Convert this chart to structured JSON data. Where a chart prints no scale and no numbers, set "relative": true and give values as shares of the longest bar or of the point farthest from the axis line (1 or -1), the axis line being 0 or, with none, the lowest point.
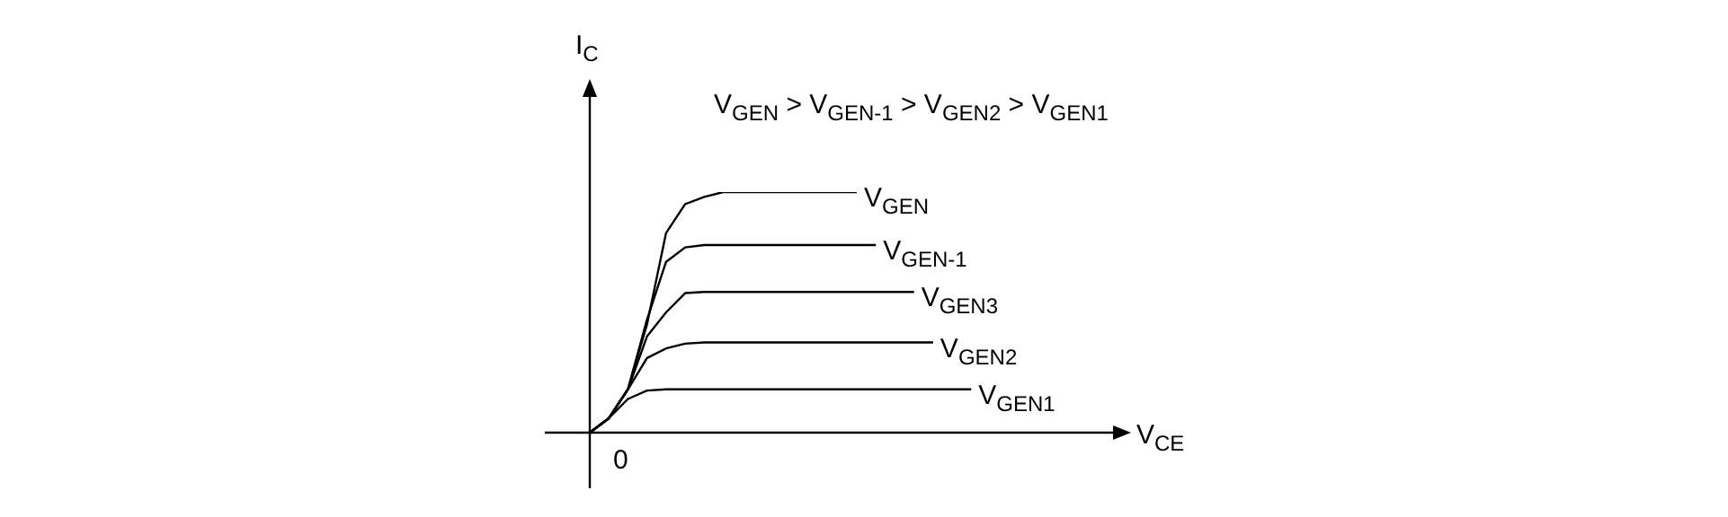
{
  "chart_data": {
    "type": "line",
    "relative": true,
    "xlabel": "V$_{CE}$",
    "ylabel": "I$_{C}$",
    "annotations": [
      "V$_{GEN}$ > V$_{GEN-1}$ > V$_{GEN2}$ > V$_{GEN1}$",
      "0"
    ],
    "marker": "none",
    "line_style": "solid",
    "categories": [
      null,
      null,
      null,
      null,
      null,
      null,
      null,
      null,
      null,
      null,
      null,
      null,
      null,
      null,
      null,
      null,
      null,
      null,
      null,
      null,
      null,
      null,
      null,
      null,
      null,
      null,
      null,
      null,
      null
    ],
    "series": [
      {
        "name": "V$_{GEN}$",
        "color": "#000000",
        "values": [
          0,
          0.06,
          0.18,
          0.45,
          0.83,
          0.95,
          0.98,
          1,
          1,
          1,
          1,
          1,
          1,
          1,
          1,
          null,
          null,
          null,
          null,
          null,
          null,
          null,
          null,
          null,
          null,
          null,
          null,
          null,
          null
        ]
      },
      {
        "name": "V$_{GEN-1}$",
        "color": "#000000",
        "values": [
          0,
          0.06,
          0.18,
          0.47,
          0.71,
          0.77,
          0.78,
          0.78,
          0.78,
          0.78,
          0.78,
          0.78,
          0.78,
          0.78,
          0.78,
          0.78,
          null,
          null,
          null,
          null,
          null,
          null,
          null,
          null,
          null,
          null,
          null,
          null,
          null
        ]
      },
      {
        "name": "V$_{GEN3}$",
        "color": "#000000",
        "values": [
          0,
          0.06,
          0.18,
          0.4,
          0.5,
          0.58,
          0.585,
          0.585,
          0.585,
          0.585,
          0.585,
          0.585,
          0.585,
          0.585,
          0.585,
          0.585,
          0.585,
          0.585,
          null,
          null,
          null,
          null,
          null,
          null,
          null,
          null,
          null,
          null,
          null
        ]
      },
      {
        "name": "V$_{GEN2}$",
        "color": "#000000",
        "values": [
          0,
          0.06,
          0.18,
          0.31,
          0.35,
          0.37,
          0.375,
          0.375,
          0.375,
          0.375,
          0.375,
          0.375,
          0.375,
          0.375,
          0.375,
          0.375,
          0.375,
          0.375,
          0.375,
          null,
          null,
          null,
          null,
          null,
          null,
          null,
          null,
          null,
          null
        ]
      },
      {
        "name": "V$_{GEN1}$",
        "color": "#000000",
        "values": [
          0,
          0.06,
          0.14,
          0.175,
          0.18,
          0.18,
          0.18,
          0.18,
          0.18,
          0.18,
          0.18,
          0.18,
          0.18,
          0.18,
          0.18,
          0.18,
          0.18,
          0.18,
          0.18,
          0.18,
          0.18,
          null,
          null,
          null,
          null,
          null,
          null,
          null,
          null
        ]
      }
    ]
  }
}
